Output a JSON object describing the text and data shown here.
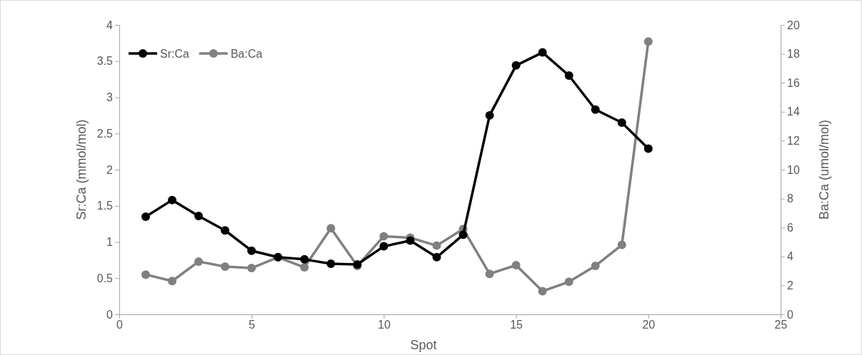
{
  "chart_data": {
    "type": "line",
    "xlabel": "Spot",
    "ylabel": "Sr:Ca (mmol/mol)",
    "y2label": "Ba:Ca (umol/mol)",
    "x": [
      1,
      2,
      3,
      4,
      5,
      6,
      7,
      8,
      9,
      10,
      11,
      12,
      13,
      14,
      15,
      16,
      17,
      18,
      19,
      20
    ],
    "series": [
      {
        "name": "Sr:Ca",
        "color": "#000000",
        "values": [
          1.35,
          1.58,
          1.36,
          1.16,
          0.88,
          0.79,
          0.76,
          0.7,
          0.69,
          0.94,
          1.02,
          0.79,
          1.1,
          2.75,
          3.44,
          3.62,
          3.3,
          2.83,
          2.65,
          2.29
        ]
      },
      {
        "name": "Ba:Ca",
        "color": "#808080",
        "axis": "y2",
        "values": [
          2.75,
          2.3,
          3.65,
          3.3,
          3.2,
          3.95,
          3.25,
          5.95,
          3.35,
          5.4,
          5.3,
          4.75,
          5.9,
          2.8,
          3.4,
          1.6,
          2.25,
          3.35,
          4.8,
          18.85
        ]
      }
    ],
    "xlim": [
      0,
      25
    ],
    "xticks": [
      0,
      5,
      10,
      15,
      20,
      25
    ],
    "ylim": [
      0,
      4
    ],
    "yticks": [
      0,
      0.5,
      1,
      1.5,
      2,
      2.5,
      3,
      3.5,
      4
    ],
    "y2lim": [
      0,
      20
    ],
    "y2ticks": [
      0,
      2,
      4,
      6,
      8,
      10,
      12,
      14,
      16,
      18,
      20
    ],
    "legend": "top left",
    "marker": "circle",
    "line_style": "solid",
    "grid": false
  }
}
